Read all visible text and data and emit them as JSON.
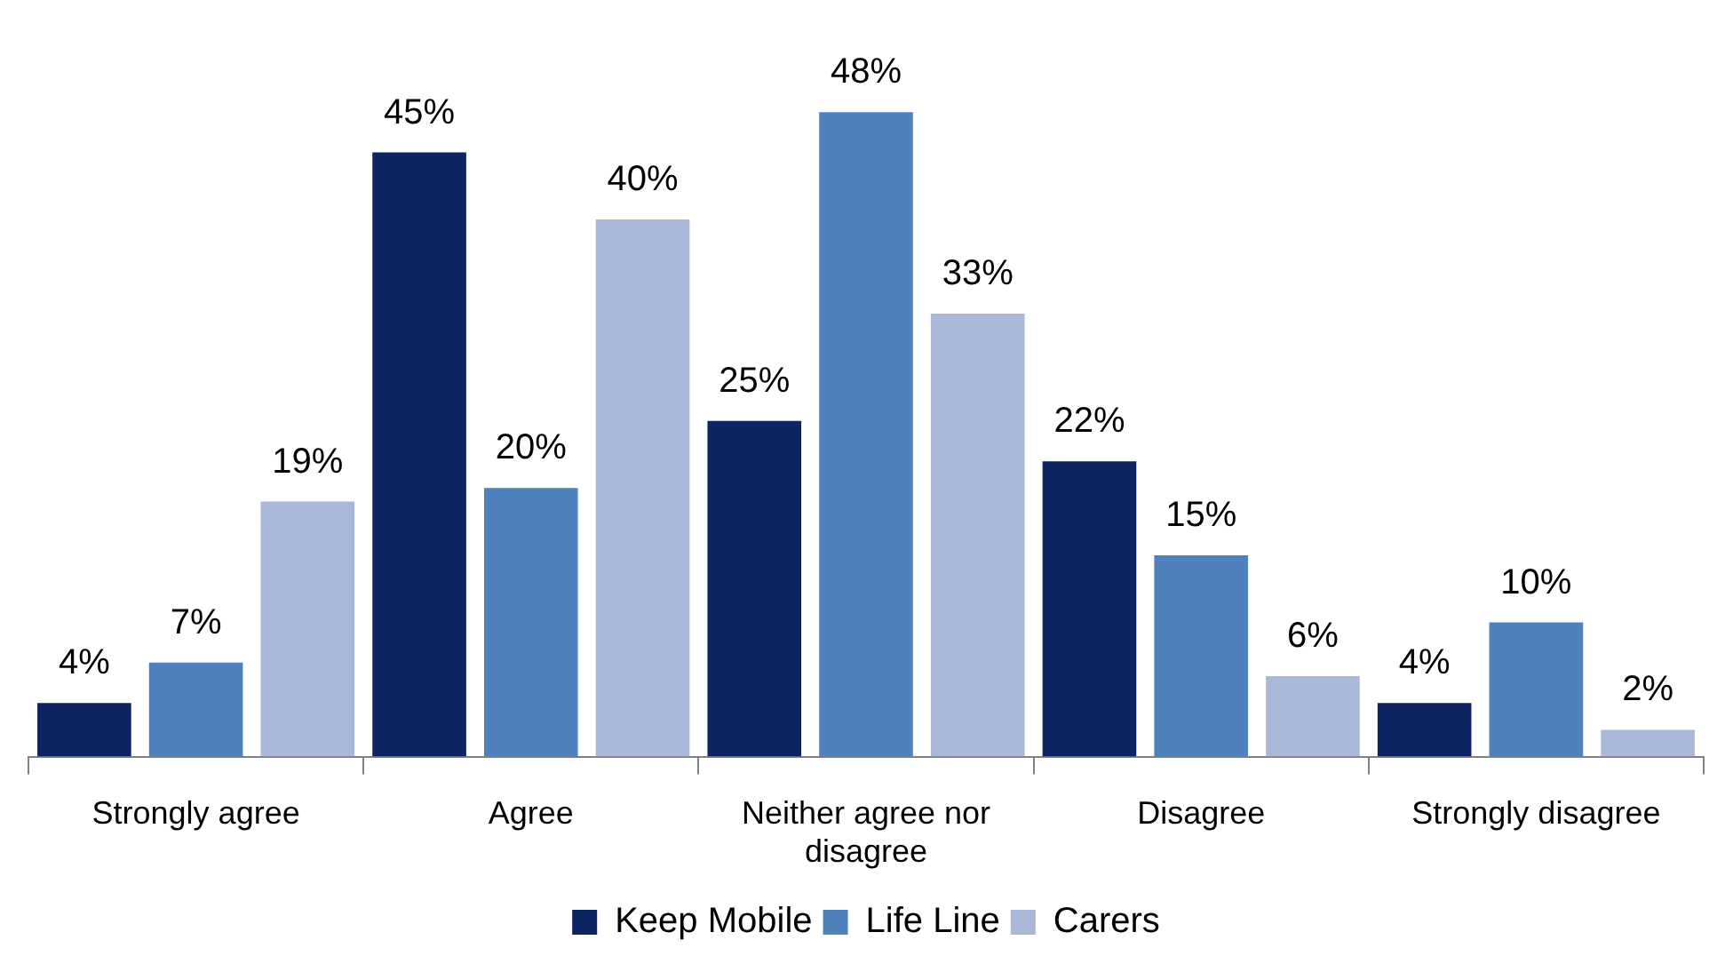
{
  "chart_data": {
    "type": "bar",
    "categories": [
      "Strongly agree",
      "Agree",
      "Neither agree nor disagree",
      "Disagree",
      "Strongly disagree"
    ],
    "series": [
      {
        "name": "Keep Mobile",
        "color": "#0c2461",
        "values": [
          4,
          45,
          25,
          22,
          4
        ],
        "value_labels": [
          "4%",
          "45%",
          "25%",
          "22%",
          "4%"
        ]
      },
      {
        "name": "Life Line",
        "color": "#4f81bd",
        "values": [
          7,
          20,
          48,
          15,
          10
        ],
        "value_labels": [
          "7%",
          "20%",
          "48%",
          "15%",
          "10%"
        ]
      },
      {
        "name": "Carers",
        "color": "#a9b8d8",
        "values": [
          19,
          40,
          33,
          6,
          2
        ],
        "value_labels": [
          "19%",
          "40%",
          "33%",
          "6%",
          "2%"
        ]
      }
    ],
    "legend": "bottom",
    "grid": false
  }
}
